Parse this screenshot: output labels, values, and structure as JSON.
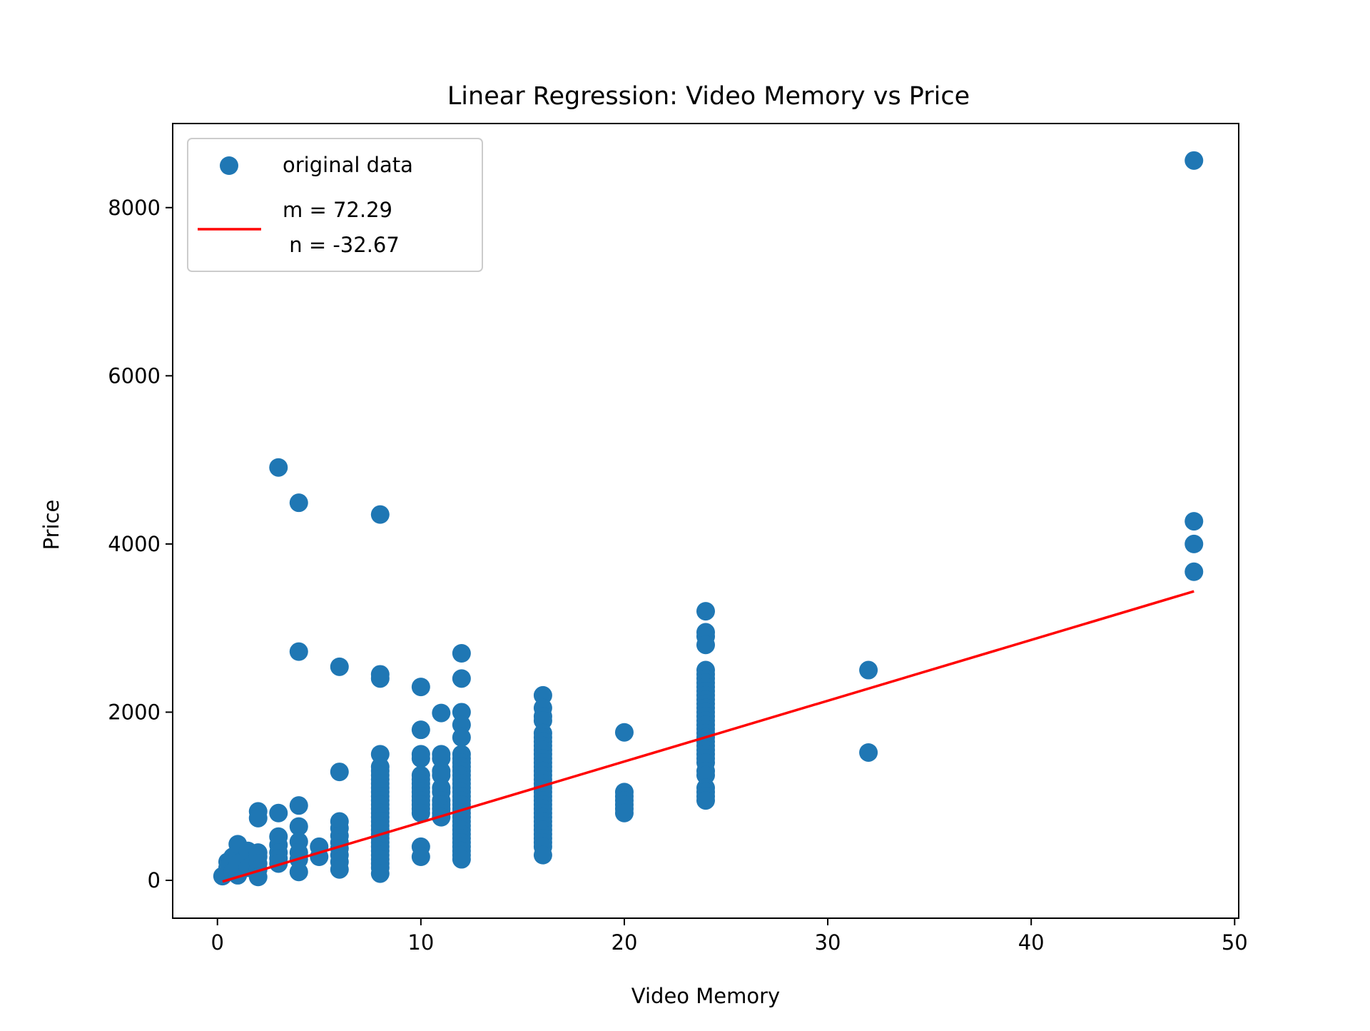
{
  "chart_data": {
    "type": "scatter",
    "title": "Linear Regression: Video Memory vs Price",
    "xlabel": "Video Memory",
    "ylabel": "Price",
    "xlim": [
      -2.2,
      50.2
    ],
    "ylim": [
      -450,
      9000
    ],
    "x_ticks": [
      0,
      10,
      20,
      30,
      40,
      50
    ],
    "x_tick_labels": [
      "0",
      "10",
      "20",
      "30",
      "40",
      "50"
    ],
    "y_ticks": [
      0,
      2000,
      4000,
      6000,
      8000
    ],
    "y_tick_labels": [
      "0",
      "2000",
      "4000",
      "6000",
      "8000"
    ],
    "grid": false,
    "legend_position": "top-left",
    "legend": {
      "entries": [
        {
          "label": "original data",
          "kind": "marker",
          "color": "#1f77b4"
        },
        {
          "label_lines": [
            "m = 72.29",
            " n = -32.67"
          ],
          "kind": "line",
          "color": "#ff0000"
        }
      ]
    },
    "series": [
      {
        "name": "original data",
        "kind": "scatter",
        "color": "#1f77b4",
        "points": [
          [
            0.25,
            50
          ],
          [
            0.5,
            220
          ],
          [
            0.5,
            150
          ],
          [
            0.75,
            280
          ],
          [
            0.75,
            100
          ],
          [
            1,
            300
          ],
          [
            1,
            60
          ],
          [
            1,
            430
          ],
          [
            1,
            200
          ],
          [
            1.5,
            350
          ],
          [
            1.5,
            150
          ],
          [
            2,
            820
          ],
          [
            2,
            740
          ],
          [
            2,
            330
          ],
          [
            2,
            280
          ],
          [
            2,
            200
          ],
          [
            2,
            130
          ],
          [
            2,
            40
          ],
          [
            3,
            4910
          ],
          [
            3,
            800
          ],
          [
            3,
            520
          ],
          [
            3,
            420
          ],
          [
            3,
            330
          ],
          [
            3,
            260
          ],
          [
            3,
            200
          ],
          [
            4,
            4490
          ],
          [
            4,
            2720
          ],
          [
            4,
            890
          ],
          [
            4,
            640
          ],
          [
            4,
            460
          ],
          [
            4,
            330
          ],
          [
            4,
            250
          ],
          [
            4,
            100
          ],
          [
            5,
            400
          ],
          [
            5,
            280
          ],
          [
            6,
            2540
          ],
          [
            6,
            1290
          ],
          [
            6,
            700
          ],
          [
            6,
            620
          ],
          [
            6,
            530
          ],
          [
            6,
            450
          ],
          [
            6,
            380
          ],
          [
            6,
            300
          ],
          [
            6,
            220
          ],
          [
            6,
            130
          ],
          [
            8,
            4350
          ],
          [
            8,
            2450
          ],
          [
            8,
            2400
          ],
          [
            8,
            1500
          ],
          [
            8,
            1350
          ],
          [
            8,
            1300
          ],
          [
            8,
            1250
          ],
          [
            8,
            1200
          ],
          [
            8,
            1150
          ],
          [
            8,
            1100
          ],
          [
            8,
            1050
          ],
          [
            8,
            1000
          ],
          [
            8,
            950
          ],
          [
            8,
            900
          ],
          [
            8,
            850
          ],
          [
            8,
            800
          ],
          [
            8,
            750
          ],
          [
            8,
            700
          ],
          [
            8,
            650
          ],
          [
            8,
            600
          ],
          [
            8,
            550
          ],
          [
            8,
            500
          ],
          [
            8,
            450
          ],
          [
            8,
            400
          ],
          [
            8,
            350
          ],
          [
            8,
            300
          ],
          [
            8,
            250
          ],
          [
            8,
            200
          ],
          [
            8,
            150
          ],
          [
            8,
            80
          ],
          [
            10,
            2300
          ],
          [
            10,
            1790
          ],
          [
            10,
            1500
          ],
          [
            10,
            1450
          ],
          [
            10,
            1250
          ],
          [
            10,
            1200
          ],
          [
            10,
            1150
          ],
          [
            10,
            1100
          ],
          [
            10,
            1050
          ],
          [
            10,
            1000
          ],
          [
            10,
            950
          ],
          [
            10,
            900
          ],
          [
            10,
            850
          ],
          [
            10,
            800
          ],
          [
            10,
            400
          ],
          [
            10,
            280
          ],
          [
            11,
            1990
          ],
          [
            11,
            1500
          ],
          [
            11,
            1450
          ],
          [
            11,
            1300
          ],
          [
            11,
            1250
          ],
          [
            11,
            1100
          ],
          [
            11,
            1050
          ],
          [
            11,
            950
          ],
          [
            11,
            900
          ],
          [
            11,
            850
          ],
          [
            11,
            800
          ],
          [
            11,
            750
          ],
          [
            12,
            2700
          ],
          [
            12,
            2400
          ],
          [
            12,
            2000
          ],
          [
            12,
            1850
          ],
          [
            12,
            1700
          ],
          [
            12,
            1500
          ],
          [
            12,
            1450
          ],
          [
            12,
            1400
          ],
          [
            12,
            1350
          ],
          [
            12,
            1300
          ],
          [
            12,
            1250
          ],
          [
            12,
            1200
          ],
          [
            12,
            1150
          ],
          [
            12,
            1100
          ],
          [
            12,
            1050
          ],
          [
            12,
            1000
          ],
          [
            12,
            950
          ],
          [
            12,
            900
          ],
          [
            12,
            850
          ],
          [
            12,
            800
          ],
          [
            12,
            750
          ],
          [
            12,
            700
          ],
          [
            12,
            650
          ],
          [
            12,
            600
          ],
          [
            12,
            550
          ],
          [
            12,
            500
          ],
          [
            12,
            450
          ],
          [
            12,
            400
          ],
          [
            12,
            350
          ],
          [
            12,
            300
          ],
          [
            12,
            250
          ],
          [
            16,
            2200
          ],
          [
            16,
            2050
          ],
          [
            16,
            1950
          ],
          [
            16,
            1900
          ],
          [
            16,
            1750
          ],
          [
            16,
            1700
          ],
          [
            16,
            1650
          ],
          [
            16,
            1600
          ],
          [
            16,
            1550
          ],
          [
            16,
            1500
          ],
          [
            16,
            1450
          ],
          [
            16,
            1400
          ],
          [
            16,
            1350
          ],
          [
            16,
            1300
          ],
          [
            16,
            1250
          ],
          [
            16,
            1200
          ],
          [
            16,
            1150
          ],
          [
            16,
            1100
          ],
          [
            16,
            1050
          ],
          [
            16,
            1000
          ],
          [
            16,
            950
          ],
          [
            16,
            900
          ],
          [
            16,
            850
          ],
          [
            16,
            800
          ],
          [
            16,
            750
          ],
          [
            16,
            700
          ],
          [
            16,
            650
          ],
          [
            16,
            600
          ],
          [
            16,
            550
          ],
          [
            16,
            500
          ],
          [
            16,
            450
          ],
          [
            16,
            400
          ],
          [
            16,
            300
          ],
          [
            20,
            1760
          ],
          [
            20,
            1050
          ],
          [
            20,
            1000
          ],
          [
            20,
            950
          ],
          [
            20,
            900
          ],
          [
            20,
            850
          ],
          [
            20,
            800
          ],
          [
            24,
            3200
          ],
          [
            24,
            2950
          ],
          [
            24,
            2900
          ],
          [
            24,
            2800
          ],
          [
            24,
            2500
          ],
          [
            24,
            2450
          ],
          [
            24,
            2400
          ],
          [
            24,
            2350
          ],
          [
            24,
            2300
          ],
          [
            24,
            2250
          ],
          [
            24,
            2200
          ],
          [
            24,
            2150
          ],
          [
            24,
            2100
          ],
          [
            24,
            2050
          ],
          [
            24,
            2000
          ],
          [
            24,
            1950
          ],
          [
            24,
            1900
          ],
          [
            24,
            1850
          ],
          [
            24,
            1800
          ],
          [
            24,
            1750
          ],
          [
            24,
            1700
          ],
          [
            24,
            1650
          ],
          [
            24,
            1600
          ],
          [
            24,
            1550
          ],
          [
            24,
            1500
          ],
          [
            24,
            1450
          ],
          [
            24,
            1400
          ],
          [
            24,
            1300
          ],
          [
            24,
            1250
          ],
          [
            24,
            1100
          ],
          [
            24,
            1050
          ],
          [
            24,
            1000
          ],
          [
            24,
            950
          ],
          [
            32,
            2500
          ],
          [
            32,
            1520
          ],
          [
            48,
            8560
          ],
          [
            48,
            4270
          ],
          [
            48,
            4000
          ],
          [
            48,
            3670
          ]
        ]
      },
      {
        "name": "m = 72.29\n n = -32.67",
        "kind": "line",
        "color": "#ff0000",
        "x": [
          0.25,
          48
        ],
        "y": [
          -14.6,
          3437.3
        ]
      }
    ]
  }
}
